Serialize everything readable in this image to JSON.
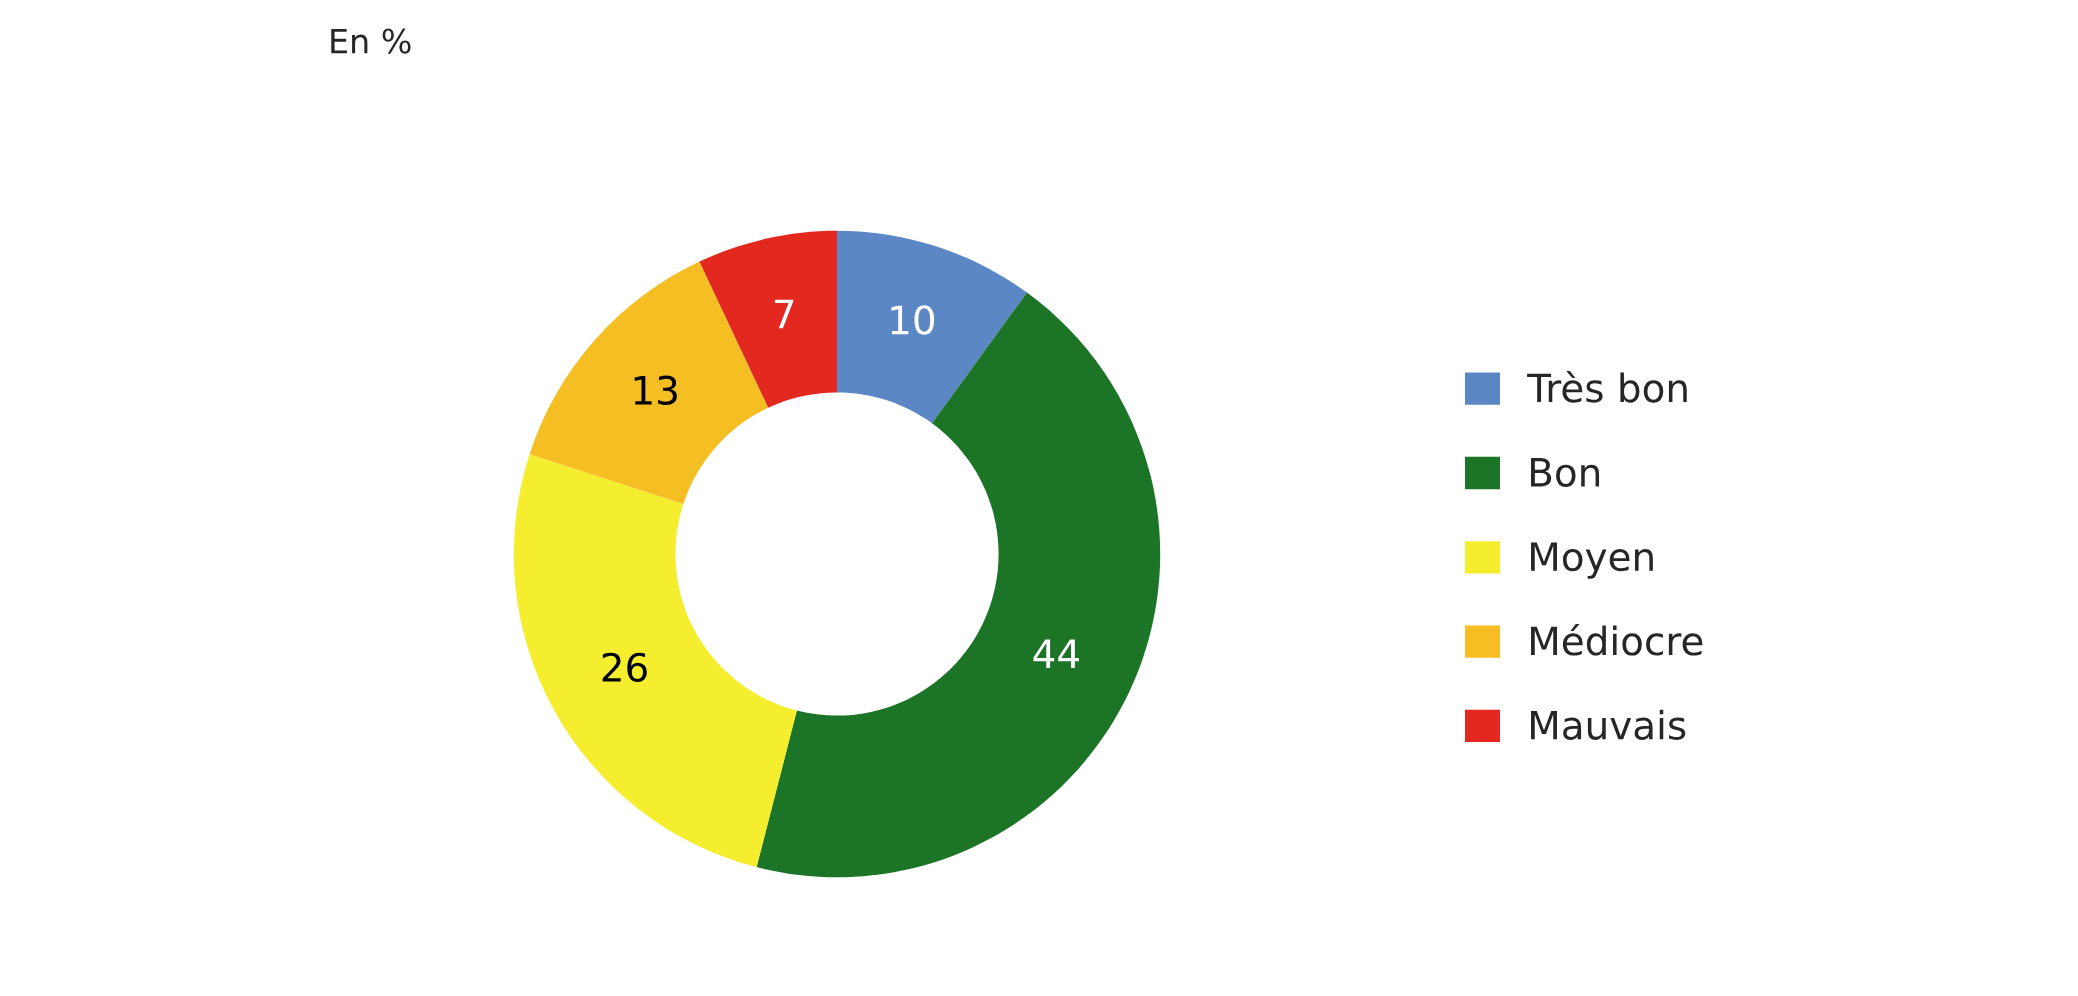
{
  "chart_data": {
    "type": "donut",
    "title": "En %",
    "categories": [
      "Très bon",
      "Bon",
      "Moyen",
      "Médiocre",
      "Mauvais"
    ],
    "values": [
      10,
      44,
      26,
      13,
      7
    ],
    "colors": [
      "#5b87c5",
      "#1c7427",
      "#f5ee2f",
      "#f5bf24",
      "#e3281f"
    ],
    "data_labels": true,
    "legend": "right"
  }
}
